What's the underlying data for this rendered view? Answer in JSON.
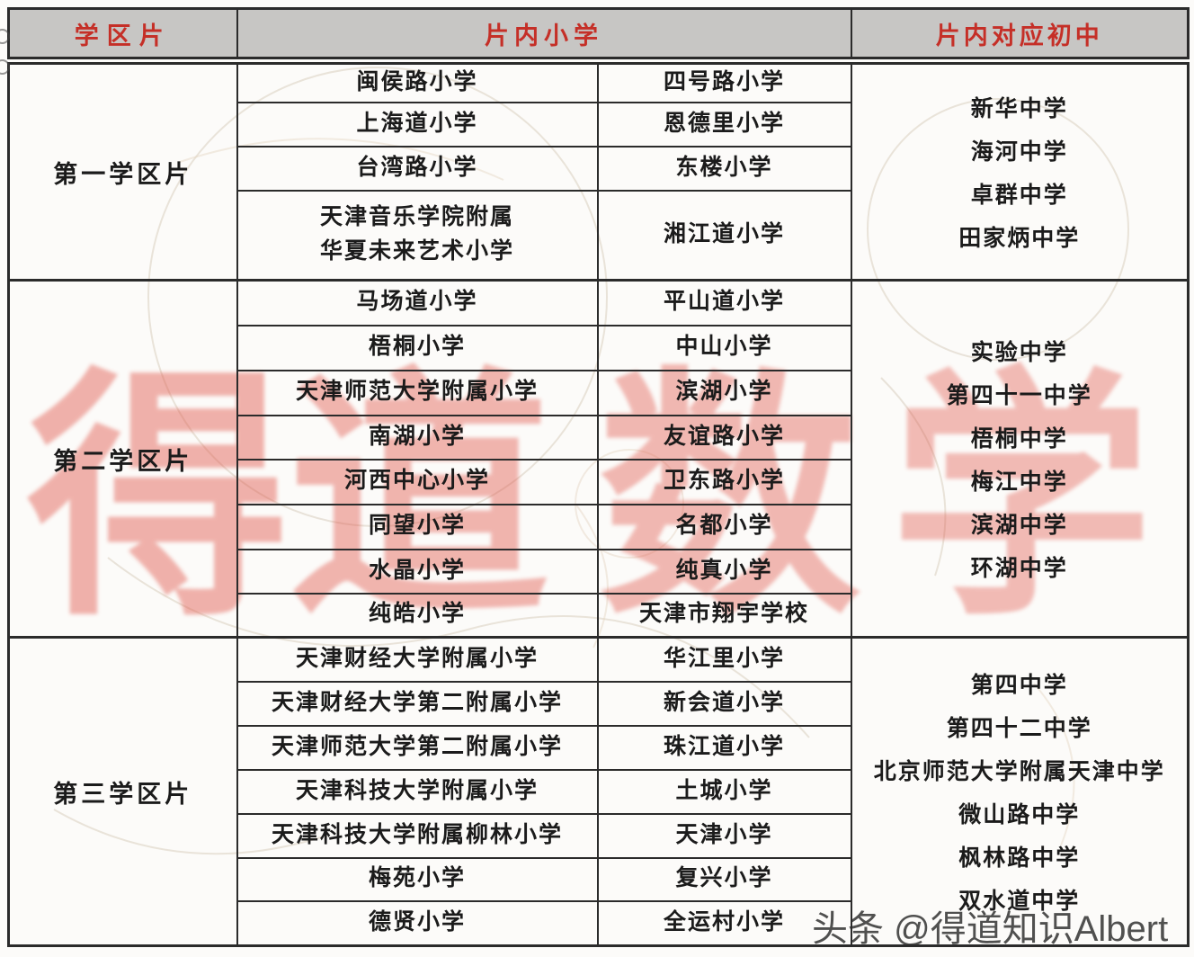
{
  "table": {
    "headers": [
      {
        "label": "学区片"
      },
      {
        "label": "片内小学"
      },
      {
        "label": "片内对应初中"
      }
    ],
    "sections": [
      {
        "district": "第一学区片",
        "rows": [
          [
            "闽侯路小学",
            "四号路小学"
          ],
          [
            "上海道小学",
            "恩德里小学"
          ],
          [
            "台湾路小学",
            "东楼小学"
          ],
          [
            "天津音乐学院附属\n华夏未来艺术小学",
            "湘江道小学"
          ]
        ],
        "middle_schools": [
          "新华中学",
          "海河中学",
          "卓群中学",
          "田家炳中学"
        ]
      },
      {
        "district": "第二学区片",
        "rows": [
          [
            "马场道小学",
            "平山道小学"
          ],
          [
            "梧桐小学",
            "中山小学"
          ],
          [
            "天津师范大学附属小学",
            "滨湖小学"
          ],
          [
            "南湖小学",
            "友谊路小学"
          ],
          [
            "河西中心小学",
            "卫东路小学"
          ],
          [
            "同望小学",
            "名都小学"
          ],
          [
            "水晶小学",
            "纯真小学"
          ],
          [
            "纯皓小学",
            "天津市翔宇学校"
          ]
        ],
        "middle_schools": [
          "实验中学",
          "第四十一中学",
          "梧桐中学",
          "梅江中学",
          "滨湖中学",
          "环湖中学"
        ]
      },
      {
        "district": "第三学区片",
        "rows": [
          [
            "天津财经大学附属小学",
            "华江里小学"
          ],
          [
            "天津财经大学第二附属小学",
            "新会道小学"
          ],
          [
            "天津师范大学第二附属小学",
            "珠江道小学"
          ],
          [
            "天津科技大学附属小学",
            "土城小学"
          ],
          [
            "天津科技大学附属柳林小学",
            "天津小学"
          ],
          [
            "梅苑小学",
            "复兴小学"
          ],
          [
            "德贤小学",
            "全运村小学"
          ]
        ],
        "middle_schools": [
          "第四中学",
          "第四十二中学",
          "北京师范大学附属天津中学",
          "微山路中学",
          "枫林路中学",
          "双水道中学"
        ]
      }
    ]
  },
  "watermarks": {
    "big_red": "得道数学",
    "credit": "头条 @得道知识Albert"
  },
  "colors": {
    "header_bg": "#c7c6c4",
    "header_text": "#c52f27",
    "border": "#2b2b2b",
    "body_text": "#1b1b1b",
    "watermark_red": "#e05347"
  }
}
